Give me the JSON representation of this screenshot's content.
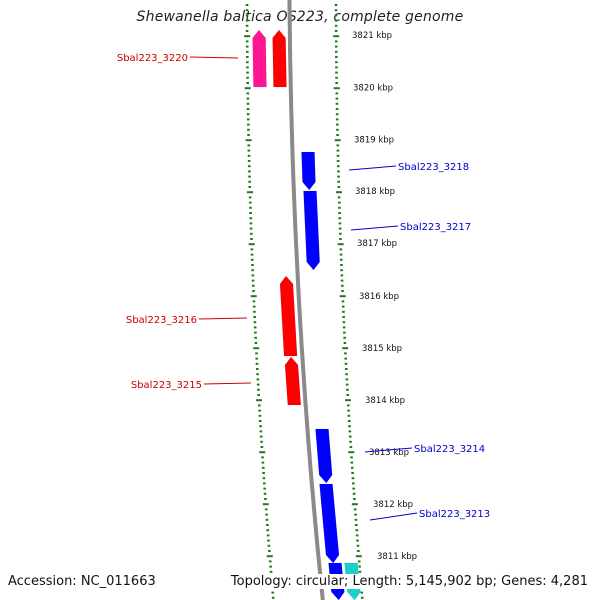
{
  "title": "Shewanella baltica OS223, complete genome",
  "accession": "Accession: NC_011663",
  "summary": "Topology: circular; Length: 5,145,902 bp; Genes: 4,281",
  "colors": {
    "backbone": "#8a8a8a",
    "tick": "#1e7a1e",
    "forward_gene": "#ff0000",
    "reverse_gene": "#0000ff",
    "forward_label": "#cc0000",
    "reverse_label": "#0000cc",
    "pink_gene": "#ff1493",
    "cyan_gene": "#1ccfcf"
  },
  "scale": {
    "unit": "kbp",
    "labels": [
      "3821 kbp",
      "3820 kbp",
      "3819 kbp",
      "3818 kbp",
      "3817 kbp",
      "3816 kbp",
      "3815 kbp",
      "3814 kbp",
      "3813 kbp",
      "3812 kbp",
      "3811 kbp"
    ]
  },
  "genes": [
    {
      "label": "Sbal223_3220",
      "strand": "forward"
    },
    {
      "label": "Sbal223_3218",
      "strand": "reverse"
    },
    {
      "label": "Sbal223_3217",
      "strand": "reverse"
    },
    {
      "label": "Sbal223_3216",
      "strand": "forward"
    },
    {
      "label": "Sbal223_3215",
      "strand": "forward"
    },
    {
      "label": "Sbal223_3214",
      "strand": "reverse"
    },
    {
      "label": "Sbal223_3213",
      "strand": "reverse"
    }
  ]
}
